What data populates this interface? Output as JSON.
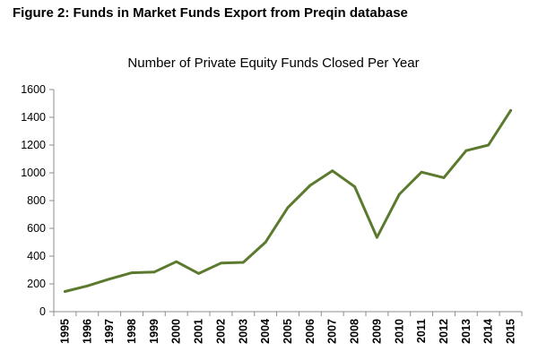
{
  "figure_caption": "Figure 2: Funds in Market Funds Export from Preqin database",
  "chart_data": {
    "type": "line",
    "title": "Number of Private Equity Funds Closed Per Year",
    "xlabel": "",
    "ylabel": "",
    "ylim": [
      0,
      1600
    ],
    "yticks": [
      "0",
      "200",
      "400",
      "600",
      "800",
      "1000",
      "1200",
      "1400",
      "1600"
    ],
    "grid": false,
    "x": [
      "1995",
      "1996",
      "1997",
      "1998",
      "1999",
      "2000",
      "2001",
      "2002",
      "2003",
      "2004",
      "2005",
      "2006",
      "2007",
      "2008",
      "2009",
      "2010",
      "2011",
      "2012",
      "2013",
      "2014",
      "2015"
    ],
    "series": [
      {
        "color": "#5b7a2e",
        "values": [
          145,
          185,
          235,
          280,
          285,
          360,
          275,
          350,
          355,
          500,
          750,
          910,
          1015,
          900,
          535,
          845,
          1005,
          965,
          1160,
          1200,
          1450
        ]
      }
    ]
  }
}
